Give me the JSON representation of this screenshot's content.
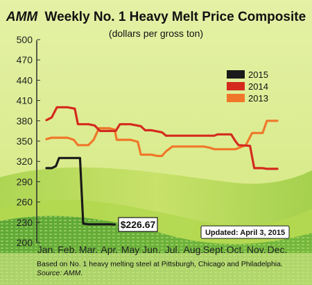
{
  "header": {
    "title_brand": "AMM",
    "title_rest": "Weekly No. 1 Heavy Melt Price Composite",
    "subtitle": "(dollars per gross ton)"
  },
  "footer": {
    "note_line1": "Based on No. 1 heavy melting steel at Pittsburgh, Chicago and Philadelphia.",
    "note_line2": "Source: AMM."
  },
  "callouts": {
    "last_value_label": "$226.67",
    "updated_label": "Updated: April 3, 2015"
  },
  "colors": {
    "background": "#d8ea88",
    "wave_light": "#c4df58",
    "wave_dark": "#6fb43c",
    "series_2015": "#1a1a1a",
    "series_2014": "#d42a1e",
    "series_2013": "#f0772a"
  },
  "chart_data": {
    "type": "line",
    "title": "AMM Weekly No. 1 Heavy Melt Price Composite",
    "subtitle": "(dollars per gross ton)",
    "xlabel": "",
    "ylabel": "",
    "ylim": [
      200,
      500
    ],
    "yticks": [
      200,
      230,
      260,
      290,
      320,
      350,
      380,
      410,
      440,
      470,
      500
    ],
    "xlim": [
      1,
      12
    ],
    "x_tick_labels": [
      "Jan.",
      "Feb.",
      "Mar.",
      "Apr.",
      "May",
      "Jun.",
      "Jul.",
      "Aug.",
      "Sept.",
      "Oct.",
      "Nov.",
      "Dec."
    ],
    "grid": false,
    "legend": "top-right",
    "series": [
      {
        "name": "2015",
        "color": "#1a1a1a",
        "points": [
          [
            1.0,
            310
          ],
          [
            1.25,
            310
          ],
          [
            1.45,
            313
          ],
          [
            1.6,
            325
          ],
          [
            2.0,
            325
          ],
          [
            2.3,
            325
          ],
          [
            2.6,
            325
          ],
          [
            2.75,
            228
          ],
          [
            3.0,
            227
          ],
          [
            3.5,
            227
          ],
          [
            4.0,
            227
          ],
          [
            4.25,
            226.67
          ]
        ]
      },
      {
        "name": "2014",
        "color": "#d42a1e",
        "points": [
          [
            1.0,
            381
          ],
          [
            1.25,
            385
          ],
          [
            1.5,
            400
          ],
          [
            2.0,
            400
          ],
          [
            2.35,
            398
          ],
          [
            2.5,
            375
          ],
          [
            3.0,
            375
          ],
          [
            3.3,
            373
          ],
          [
            3.55,
            365
          ],
          [
            4.0,
            365
          ],
          [
            4.3,
            365
          ],
          [
            4.5,
            375
          ],
          [
            5.0,
            375
          ],
          [
            5.5,
            372
          ],
          [
            5.7,
            366
          ],
          [
            6.0,
            366
          ],
          [
            6.5,
            363
          ],
          [
            6.7,
            358
          ],
          [
            7.0,
            358
          ],
          [
            8.0,
            358
          ],
          [
            9.0,
            358
          ],
          [
            9.15,
            360
          ],
          [
            9.5,
            360
          ],
          [
            9.8,
            360
          ],
          [
            10.0,
            350
          ],
          [
            10.15,
            344
          ],
          [
            10.7,
            343
          ],
          [
            10.9,
            310
          ],
          [
            11.3,
            310
          ],
          [
            11.5,
            309
          ],
          [
            12.0,
            309
          ]
        ]
      },
      {
        "name": "2013",
        "color": "#f0772a",
        "points": [
          [
            1.0,
            353
          ],
          [
            1.25,
            355
          ],
          [
            1.5,
            355
          ],
          [
            2.0,
            355
          ],
          [
            2.3,
            352
          ],
          [
            2.5,
            344
          ],
          [
            3.0,
            344
          ],
          [
            3.25,
            352
          ],
          [
            3.5,
            369
          ],
          [
            4.0,
            369
          ],
          [
            4.25,
            367
          ],
          [
            4.35,
            352
          ],
          [
            5.0,
            352
          ],
          [
            5.35,
            349
          ],
          [
            5.5,
            330
          ],
          [
            6.0,
            330
          ],
          [
            6.3,
            328
          ],
          [
            6.5,
            328
          ],
          [
            6.7,
            335
          ],
          [
            7.0,
            342
          ],
          [
            7.5,
            342
          ],
          [
            8.0,
            342
          ],
          [
            8.5,
            342
          ],
          [
            8.8,
            340
          ],
          [
            9.0,
            338
          ],
          [
            9.5,
            338
          ],
          [
            10.0,
            338
          ],
          [
            10.5,
            344
          ],
          [
            10.8,
            362
          ],
          [
            11.0,
            362
          ],
          [
            11.3,
            362
          ],
          [
            11.5,
            380
          ],
          [
            12.0,
            380
          ]
        ]
      }
    ]
  }
}
